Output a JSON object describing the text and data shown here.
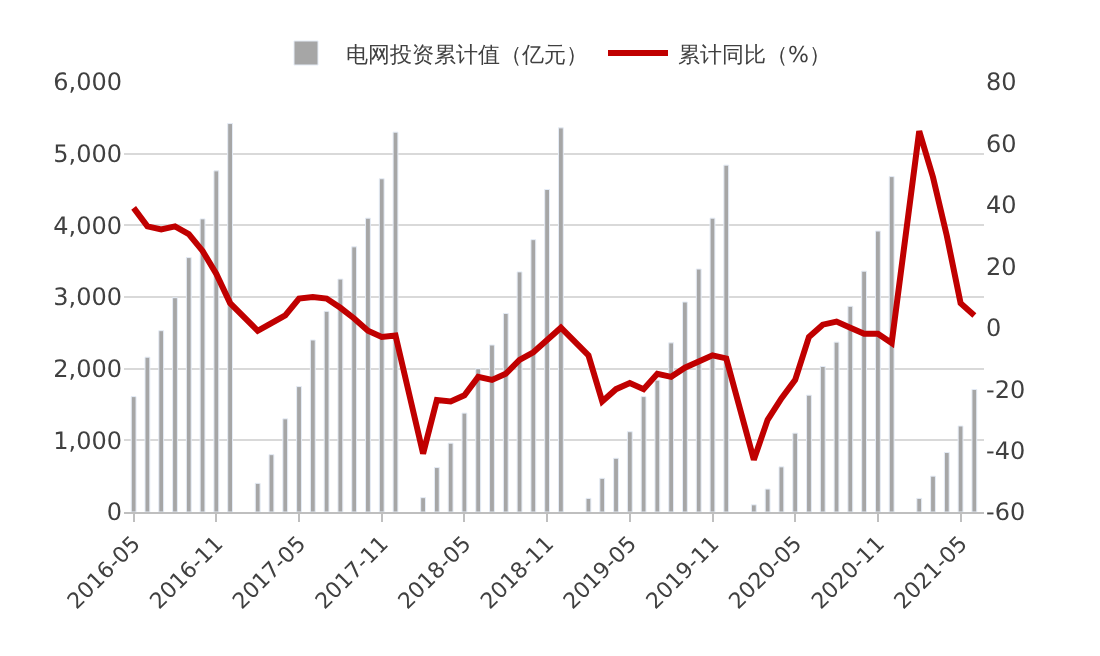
{
  "chart_data": {
    "type": "bar",
    "categories": [
      "2016-05",
      null,
      null,
      null,
      null,
      null,
      "2016-11",
      null,
      null,
      null,
      null,
      null,
      "2017-05",
      null,
      null,
      null,
      null,
      null,
      "2017-11",
      null,
      null,
      null,
      null,
      null,
      "2018-05",
      null,
      null,
      null,
      null,
      null,
      "2018-11",
      null,
      null,
      null,
      null,
      null,
      "2019-05",
      null,
      null,
      null,
      null,
      null,
      "2019-11",
      null,
      null,
      null,
      null,
      null,
      "2020-05",
      null,
      null,
      null,
      null,
      null,
      "2020-11",
      null,
      null,
      null,
      null,
      null,
      "2021-05",
      null
    ],
    "series": [
      {
        "name": "电网投资累计值（亿元）",
        "color": "#a6a6a6",
        "values": [
          1610,
          2160,
          2530,
          2990,
          3550,
          4090,
          4760,
          5420,
          null,
          400,
          800,
          1300,
          1750,
          2400,
          2800,
          3250,
          3700,
          4100,
          4650,
          5300,
          null,
          200,
          620,
          960,
          1380,
          2000,
          2330,
          2770,
          3350,
          3800,
          4500,
          5360,
          null,
          190,
          470,
          750,
          1120,
          1610,
          1840,
          2360,
          2930,
          3390,
          4100,
          4840,
          null,
          100,
          320,
          630,
          1100,
          1630,
          2030,
          2370,
          2870,
          3360,
          3920,
          4680,
          null,
          190,
          500,
          830,
          1200,
          1710
        ]
      },
      {
        "name": "累计同比（%）",
        "type": "line",
        "axis": "y2",
        "color": "#c00000",
        "values": [
          39,
          33,
          32,
          33,
          30.5,
          25,
          17.5,
          8,
          null,
          -1,
          1.5,
          4,
          9.5,
          10,
          9.5,
          6.5,
          3,
          -1,
          -3,
          -2.5,
          null,
          -41,
          -23.5,
          -24,
          -22,
          -16,
          -17,
          -15,
          -10.5,
          -8,
          -4,
          0,
          null,
          -9,
          -24,
          -20,
          -18,
          -20,
          -15,
          -16,
          -13,
          -11,
          -9,
          -10,
          null,
          -43,
          -30,
          -23,
          -17,
          -3,
          1,
          2,
          0,
          -2,
          -2,
          -5,
          null,
          64,
          49,
          30,
          8,
          4
        ]
      }
    ],
    "ylim": [
      0,
      6000
    ],
    "yticks": [
      {
        "value": 0,
        "label": "0"
      },
      {
        "value": 1000,
        "label": "1,000"
      },
      {
        "value": 2000,
        "label": "2,000"
      },
      {
        "value": 3000,
        "label": "3,000"
      },
      {
        "value": 4000,
        "label": "4,000"
      },
      {
        "value": 5000,
        "label": "5,000"
      },
      {
        "value": 6000,
        "label": "6,000"
      }
    ],
    "y2lim": [
      -60,
      80
    ],
    "y2ticks": [
      -60,
      -40,
      -20,
      0,
      20,
      40,
      60,
      80
    ],
    "grid": "y",
    "legend": "top",
    "marker": "none",
    "line_style": "solid"
  }
}
